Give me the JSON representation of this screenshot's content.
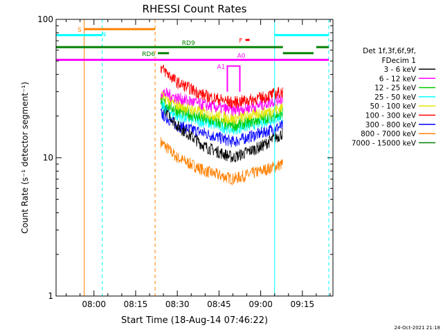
{
  "chart_data": {
    "type": "line",
    "title": "RHESSI Count Rates",
    "xlabel": "Start Time (18-Aug-14 07:46:22)",
    "ylabel": "Count Rate (s⁻¹ detector segment⁻¹)",
    "yscale": "log",
    "ylim": [
      1,
      100
    ],
    "xlim": [
      "07:46:22",
      "09:26:00"
    ],
    "x_ticks": [
      "08:00",
      "08:15",
      "08:30",
      "08:45",
      "09:00",
      "09:15"
    ],
    "y_ticks": [
      "1",
      "10",
      "100"
    ],
    "grid": false,
    "legend_position": "right",
    "legend_header": [
      "Det 1f,3f,6f,9f,",
      "FDecim 1"
    ],
    "series": [
      {
        "name": "3 - 6 keV",
        "color": "#000000",
        "x": [
          "08:24",
          "08:30",
          "08:40",
          "08:50",
          "09:00",
          "09:08"
        ],
        "values": [
          25,
          17,
          12,
          10,
          12,
          15
        ]
      },
      {
        "name": "6 - 12 keV",
        "color": "#ff00ff",
        "x": [
          "08:24",
          "08:30",
          "08:40",
          "08:50",
          "09:00",
          "09:08"
        ],
        "values": [
          30,
          27,
          24,
          22,
          24,
          27
        ]
      },
      {
        "name": "12 - 25 keV",
        "color": "#00cc00",
        "x": [
          "08:24",
          "08:30",
          "08:40",
          "08:50",
          "09:00",
          "09:08"
        ],
        "values": [
          26,
          22,
          19,
          17,
          19,
          21
        ]
      },
      {
        "name": "25 - 50 keV",
        "color": "#00ffff",
        "x": [
          "08:24",
          "08:30",
          "08:40",
          "08:50",
          "09:00",
          "09:08"
        ],
        "values": [
          24,
          20,
          18,
          16,
          18,
          20
        ]
      },
      {
        "name": "50 - 100 keV",
        "color": "#e6e600",
        "x": [
          "08:24",
          "08:30",
          "08:40",
          "08:50",
          "09:00",
          "09:08"
        ],
        "values": [
          28,
          24,
          21,
          19,
          21,
          23
        ]
      },
      {
        "name": "100 - 300 keV",
        "color": "#ff0000",
        "x": [
          "08:24",
          "08:30",
          "08:40",
          "08:50",
          "09:00",
          "09:08"
        ],
        "values": [
          45,
          35,
          28,
          25,
          27,
          30
        ]
      },
      {
        "name": "300 - 800 keV",
        "color": "#0000ff",
        "x": [
          "08:24",
          "08:30",
          "08:40",
          "08:50",
          "09:00",
          "09:08"
        ],
        "values": [
          21,
          17,
          15,
          13,
          15,
          17
        ]
      },
      {
        "name": "800 - 7000 keV",
        "color": "#ff8000",
        "x": [
          "08:24",
          "08:30",
          "08:40",
          "08:50",
          "09:00",
          "09:08"
        ],
        "values": [
          13,
          10,
          8,
          7,
          8,
          9
        ]
      },
      {
        "name": "7000 - 15000 keV",
        "color": "#008000",
        "x": [],
        "values": []
      }
    ],
    "annotations": {
      "flags": [
        {
          "label": "S",
          "color": "#ff8000",
          "value": 85,
          "start": "07:56:30",
          "end": "08:22:00",
          "label_pos": "left"
        },
        {
          "label": "N",
          "color": "#00ffff",
          "value": 77,
          "start": "07:46:22",
          "end": "08:03:00",
          "label_pos": "end"
        },
        {
          "label": "N",
          "color": "#00ffff",
          "value": 77,
          "start": "09:05:00",
          "end": "09:24:30",
          "label_pos": "none"
        },
        {
          "label": "RD9",
          "color": "#008000",
          "value": 63,
          "start": "07:46:22",
          "end": "09:08:00",
          "label_pos": "mid"
        },
        {
          "label": "",
          "color": "#008000",
          "value": 57,
          "start": "09:08:00",
          "end": "09:19:00",
          "label_pos": "none"
        },
        {
          "label": "",
          "color": "#008000",
          "value": 63,
          "start": "09:20:00",
          "end": "09:24:30",
          "label_pos": "none"
        },
        {
          "label": "RD6",
          "color": "#008000",
          "value": 57,
          "start": "08:23:00",
          "end": "08:27:00",
          "label_pos": "left"
        },
        {
          "label": "A0",
          "color": "#ff00ff",
          "value": 51,
          "start": "07:46:22",
          "end": "09:24:30",
          "label_pos": "mid"
        },
        {
          "label": "F",
          "color": "#ff0000",
          "value": 71,
          "start": "08:54:30",
          "end": "08:56:00",
          "label_pos": "left"
        }
      ],
      "vlines": [
        {
          "time": "07:56:30",
          "color": "#ff8000",
          "style": "solid"
        },
        {
          "time": "08:03:00",
          "color": "#00ffff",
          "style": "dashed"
        },
        {
          "time": "08:22:00",
          "color": "#ff8000",
          "style": "dashed"
        },
        {
          "time": "09:05:00",
          "color": "#00ffff",
          "style": "solid"
        },
        {
          "time": "09:24:30",
          "color": "#00ffff",
          "style": "dashed"
        }
      ],
      "attenuator": {
        "label": "A1",
        "color": "#ff00ff",
        "start": "08:48:00",
        "end": "08:52:30",
        "value": 46
      }
    },
    "footer_date": "24-Oct-2021 21:18"
  }
}
